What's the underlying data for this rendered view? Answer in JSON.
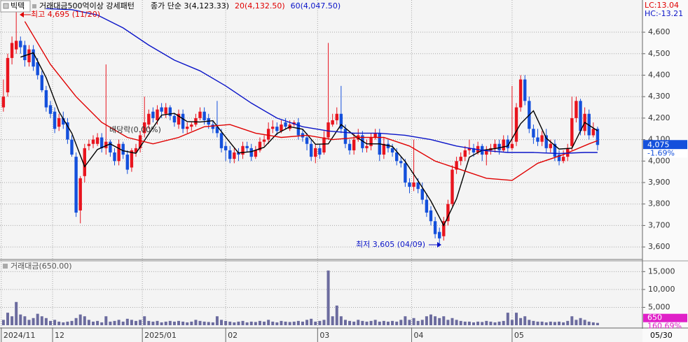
{
  "header": {
    "stock": "빅텍",
    "indicator": "거래대금500억이상 강세패턴",
    "lc": "LC:13.04",
    "hc": "HC:-13.21"
  },
  "chart_data": [
    {
      "type": "candlestick",
      "up_color": "#e8141e",
      "down_color": "#1450dc",
      "grid": true,
      "xlim": [
        -0.8,
        149.5
      ],
      "xticks": [
        {
          "value": -0.5,
          "label": "2024/11"
        },
        {
          "value": 11.5,
          "label": "12"
        },
        {
          "value": 32.5,
          "label": "2025/01"
        },
        {
          "value": 52,
          "label": "02"
        },
        {
          "value": 73.5,
          "label": "03"
        },
        {
          "value": 95.5,
          "label": "04"
        },
        {
          "value": 119,
          "label": "05"
        }
      ],
      "end_label": "05/30",
      "ylim": [
        3545,
        4750
      ],
      "yticks": [
        {
          "value": 3600,
          "label": "3,600"
        },
        {
          "value": 3700,
          "label": "3,700"
        },
        {
          "value": 3800,
          "label": "3,800"
        },
        {
          "value": 3900,
          "label": "3,900"
        },
        {
          "value": 4000,
          "label": "4,000"
        },
        {
          "value": 4100,
          "label": "4,100"
        },
        {
          "value": 4200,
          "label": "4,200"
        },
        {
          "value": 4300,
          "label": "4,300"
        },
        {
          "value": 4400,
          "label": "4,400"
        },
        {
          "value": 4500,
          "label": "4,500"
        },
        {
          "value": 4600,
          "label": "4,600"
        }
      ],
      "open": [
        4250,
        4320,
        4480,
        4520,
        4560,
        4540,
        4460,
        4520,
        4460,
        4400,
        4330,
        4260,
        4230,
        4160,
        4200,
        4180,
        4100,
        4020,
        3770,
        3930,
        4070,
        4080,
        4080,
        4110,
        4060,
        4090,
        4040,
        4000,
        4080,
        4030,
        3970,
        4040,
        4060,
        4130,
        4170,
        4230,
        4190,
        4250,
        4220,
        4250,
        4210,
        4170,
        4220,
        4150,
        4160,
        4170,
        4200,
        4230,
        4200,
        4170,
        4160,
        4130,
        4070,
        4050,
        4010,
        4040,
        4030,
        4070,
        4060,
        4020,
        4050,
        4090,
        4100,
        4150,
        4160,
        4140,
        4180,
        4150,
        4170,
        4180,
        4130,
        4110,
        4080,
        4020,
        4060,
        4040,
        4110,
        4170,
        4190,
        4220,
        4150,
        4080,
        4050,
        4100,
        4120,
        4060,
        4070,
        4110,
        4130,
        4030,
        4080,
        4060,
        4040,
        4000,
        3990,
        3900,
        3880,
        3900,
        3870,
        3820,
        3770,
        3720,
        3670,
        3650,
        3720,
        3800,
        3960,
        4000,
        4020,
        4050,
        4060,
        4040,
        4070,
        4030,
        4050,
        4060,
        4080,
        4050,
        4100,
        4060,
        4090,
        4250,
        4380,
        4280,
        4150,
        4110,
        4090,
        4120,
        4060,
        4080,
        4030,
        4000,
        4020,
        4070,
        4200,
        4280,
        4140,
        4220,
        4120,
        4150
      ],
      "high": [
        4380,
        4500,
        4580,
        4695,
        4580,
        4560,
        4540,
        4540,
        4480,
        4420,
        4350,
        4280,
        4250,
        4220,
        4230,
        4200,
        4120,
        4040,
        3930,
        4080,
        4100,
        4120,
        4130,
        4130,
        4450,
        4100,
        4060,
        4100,
        4090,
        4050,
        4060,
        4080,
        4140,
        4300,
        4240,
        4250,
        4260,
        4270,
        4270,
        4260,
        4220,
        4240,
        4240,
        4180,
        4180,
        4220,
        4250,
        4250,
        4220,
        4190,
        4280,
        4150,
        4090,
        4070,
        4060,
        4060,
        4090,
        4090,
        4080,
        4070,
        4110,
        4120,
        4180,
        4190,
        4180,
        4190,
        4200,
        4190,
        4190,
        4200,
        4150,
        4130,
        4100,
        4080,
        4080,
        4140,
        4550,
        4220,
        4250,
        4350,
        4170,
        4100,
        4130,
        4150,
        4140,
        4100,
        4130,
        4150,
        4150,
        4110,
        4100,
        4080,
        4060,
        4020,
        4010,
        3920,
        4100,
        3920,
        3900,
        3850,
        3790,
        3740,
        3690,
        3740,
        3820,
        3980,
        4020,
        4040,
        4070,
        4100,
        4080,
        4090,
        4080,
        4070,
        4080,
        4100,
        4100,
        4120,
        4120,
        4350,
        4270,
        4400,
        4400,
        4300,
        4170,
        4150,
        4140,
        4150,
        4100,
        4100,
        4050,
        4050,
        4080,
        4300,
        4300,
        4290,
        4250,
        4240,
        4180,
        4160
      ],
      "low": [
        4230,
        4300,
        4450,
        4500,
        4500,
        4440,
        4440,
        4420,
        4380,
        4320,
        4230,
        4200,
        4130,
        4140,
        4150,
        4080,
        4020,
        3740,
        3710,
        3900,
        4050,
        4060,
        4070,
        4040,
        4030,
        4020,
        3980,
        3980,
        4010,
        3940,
        3950,
        4020,
        4040,
        4110,
        4150,
        4180,
        4170,
        4200,
        4200,
        4190,
        4160,
        4150,
        4130,
        4130,
        4140,
        4160,
        4190,
        4170,
        4150,
        4130,
        4110,
        4040,
        4000,
        3990,
        3990,
        4000,
        4010,
        4040,
        4000,
        4010,
        4040,
        4070,
        4080,
        4130,
        4120,
        4130,
        4150,
        4140,
        4160,
        4100,
        4090,
        4050,
        4000,
        3990,
        4010,
        4030,
        4100,
        4160,
        4170,
        4130,
        4060,
        4030,
        4030,
        4090,
        4040,
        4040,
        4050,
        4100,
        4000,
        4010,
        4040,
        4020,
        3980,
        3970,
        3880,
        3850,
        3860,
        3850,
        3800,
        3740,
        3700,
        3640,
        3605,
        3630,
        3700,
        3790,
        3940,
        3980,
        4000,
        4030,
        4020,
        4030,
        4000,
        3980,
        4030,
        4040,
        4030,
        4040,
        4040,
        4050,
        4070,
        4230,
        4260,
        4130,
        4080,
        4070,
        4070,
        4040,
        4040,
        4000,
        3980,
        3990,
        4000,
        4050,
        4180,
        4120,
        4120,
        4100,
        4110,
        4050
      ],
      "close": [
        4300,
        4480,
        4550,
        4560,
        4530,
        4470,
        4520,
        4440,
        4400,
        4330,
        4250,
        4220,
        4150,
        4200,
        4170,
        4100,
        4030,
        3760,
        3920,
        4060,
        4080,
        4100,
        4110,
        4060,
        4090,
        4040,
        4000,
        4080,
        4030,
        3960,
        4050,
        4060,
        4120,
        4180,
        4220,
        4200,
        4240,
        4230,
        4250,
        4210,
        4180,
        4220,
        4150,
        4160,
        4170,
        4200,
        4230,
        4190,
        4170,
        4150,
        4130,
        4060,
        4050,
        4010,
        4040,
        4030,
        4070,
        4060,
        4020,
        4050,
        4090,
        4100,
        4150,
        4160,
        4140,
        4170,
        4160,
        4170,
        4180,
        4120,
        4110,
        4080,
        4020,
        4060,
        4030,
        4110,
        4180,
        4190,
        4220,
        4150,
        4080,
        4050,
        4100,
        4120,
        4060,
        4070,
        4110,
        4130,
        4030,
        4080,
        4060,
        4040,
        4000,
        3990,
        3900,
        3880,
        3900,
        3870,
        3820,
        3760,
        3720,
        3660,
        3640,
        3720,
        3800,
        3960,
        4000,
        4020,
        4050,
        4060,
        4040,
        4070,
        4030,
        4050,
        4060,
        4080,
        4050,
        4100,
        4060,
        4080,
        4250,
        4380,
        4280,
        4150,
        4110,
        4090,
        4120,
        4060,
        4080,
        4020,
        4000,
        4020,
        4060,
        4200,
        4280,
        4140,
        4220,
        4120,
        4150,
        4075
      ],
      "series": [
        {
          "name": "종가 단순 3(4,123.33)",
          "color": "#000000",
          "type": "line",
          "x": [
            4,
            7,
            10,
            13,
            16,
            19,
            22,
            25,
            28,
            31,
            34,
            37,
            40,
            43,
            46,
            49,
            52,
            55,
            58,
            61,
            64,
            67,
            70,
            73,
            76,
            79,
            82,
            85,
            88,
            91,
            94,
            97,
            100,
            103,
            106,
            109,
            112,
            115,
            118,
            121,
            124,
            127,
            130,
            133,
            136,
            139
          ],
          "values": [
            4484,
            4504,
            4388,
            4230,
            4130,
            3974,
            4054,
            4080,
            4048,
            4036,
            4126,
            4214,
            4222,
            4184,
            4182,
            4188,
            4112,
            4038,
            4044,
            4064,
            4128,
            4160,
            4148,
            4078,
            4080,
            4170,
            4120,
            4080,
            4080,
            4068,
            3998,
            3908,
            3814,
            3700,
            3824,
            4018,
            4050,
            4058,
            4070,
            4174,
            4234,
            4106,
            4056,
            4060,
            4180,
            4141
          ]
        },
        {
          "name": "20(4,132.50)",
          "color": "#e00000",
          "type": "line",
          "x": [
            5,
            11,
            17,
            23,
            29,
            35,
            41,
            47,
            53,
            59,
            65,
            71,
            77,
            83,
            89,
            95,
            101,
            107,
            113,
            119,
            125,
            131,
            137,
            139
          ],
          "values": [
            4650,
            4450,
            4300,
            4180,
            4110,
            4080,
            4110,
            4160,
            4170,
            4130,
            4110,
            4120,
            4100,
            4110,
            4110,
            4070,
            4000,
            3960,
            3920,
            3910,
            3990,
            4030,
            4080,
            4095
          ]
        },
        {
          "name": "60(4,047.50)",
          "color": "#0a14c8",
          "type": "line",
          "x": [
            10,
            16,
            22,
            28,
            34,
            40,
            46,
            52,
            58,
            64,
            70,
            76,
            82,
            88,
            94,
            100,
            106,
            112,
            118,
            124,
            130,
            136,
            139
          ],
          "values": [
            4710,
            4705,
            4680,
            4620,
            4540,
            4470,
            4420,
            4350,
            4270,
            4200,
            4160,
            4140,
            4130,
            4130,
            4120,
            4100,
            4070,
            4050,
            4040,
            4040,
            4035,
            4040,
            4040
          ]
        }
      ],
      "annotations": [
        {
          "text": "최고 4,695 (11/20)",
          "color": "#e00000"
        },
        {
          "text": "최저 3,605 (04/09)",
          "color": "#0a14c8"
        },
        {
          "text": "배당락(0.00%)",
          "color": "#333333"
        }
      ],
      "last_price": {
        "value": 4075,
        "label": "4,075",
        "change": "-1.69%",
        "color": "#1450dc"
      }
    },
    {
      "type": "bar",
      "title": "거래대금(650.00)",
      "color": "#6b6b9e",
      "xlim": [
        -0.8,
        149.5
      ],
      "ylim": [
        0,
        18000
      ],
      "yticks": [
        {
          "value": 5000,
          "label": "5,000"
        },
        {
          "value": 10000,
          "label": "10,000"
        },
        {
          "value": 15000,
          "label": "15,000"
        }
      ],
      "values": [
        1500,
        3500,
        2500,
        6500,
        3000,
        2500,
        1500,
        2000,
        3200,
        2500,
        2000,
        1200,
        1500,
        1000,
        800,
        1000,
        1200,
        2000,
        3000,
        2500,
        1500,
        1000,
        1200,
        800,
        2500,
        1000,
        1200,
        1500,
        1000,
        1800,
        1500,
        1200,
        1500,
        2500,
        1200,
        1000,
        1200,
        800,
        1000,
        1200,
        1000,
        1200,
        1000,
        800,
        1000,
        1500,
        1200,
        1000,
        900,
        800,
        2500,
        1500,
        1200,
        1000,
        800,
        1000,
        1200,
        800,
        1000,
        900,
        1200,
        1000,
        1500,
        1000,
        800,
        1200,
        1000,
        900,
        1000,
        1200,
        1000,
        1500,
        1800,
        1000,
        1200,
        1500,
        15300,
        2500,
        5500,
        2500,
        1500,
        1200,
        1000,
        1500,
        1200,
        1000,
        1200,
        1500,
        1000,
        1200,
        1000,
        1200,
        1000,
        1500,
        2500,
        1500,
        2000,
        1200,
        1500,
        2500,
        3000,
        2500,
        2000,
        2500,
        1500,
        2000,
        1500,
        1200,
        1000,
        1000,
        800,
        1000,
        900,
        1200,
        1000,
        800,
        1000,
        1200,
        3500,
        1500,
        3500,
        2000,
        2500,
        1500,
        1200,
        1000,
        1000,
        800,
        1000,
        900,
        1000,
        800,
        1200,
        2500,
        1500,
        2000,
        1500,
        1000,
        800,
        650
      ],
      "last_value": {
        "value": 650,
        "label": "650",
        "change": "160.69%",
        "color": "#e020c8"
      }
    }
  ]
}
